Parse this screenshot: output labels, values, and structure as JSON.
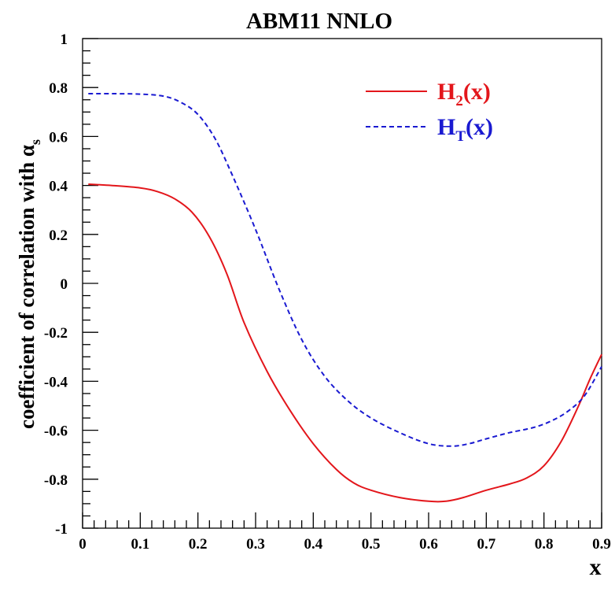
{
  "chart_data": {
    "type": "line",
    "title": "ABM11 NNLO",
    "xlabel": "x",
    "ylabel": {
      "main": "coefficient of correlation with α",
      "sub": "s"
    },
    "xlim": [
      0,
      0.9
    ],
    "ylim": [
      -1,
      1
    ],
    "x_ticks": [
      "0",
      "0.1",
      "0.2",
      "0.3",
      "0.4",
      "0.5",
      "0.6",
      "0.7",
      "0.8",
      "0.9"
    ],
    "y_ticks": [
      "1",
      "0.8",
      "0.6",
      "0.4",
      "0.2",
      "0",
      "-0.2",
      "-0.4",
      "-0.6",
      "-0.8",
      "-1"
    ],
    "legend_position": "top-right",
    "series": [
      {
        "name": "H2(x)",
        "label_main": "H",
        "label_sub": "2",
        "label_tail": "(x)",
        "color": "#e3161b",
        "style": "solid",
        "points": [
          [
            0.01,
            0.405
          ],
          [
            0.05,
            0.4
          ],
          [
            0.1,
            0.39
          ],
          [
            0.13,
            0.375
          ],
          [
            0.16,
            0.345
          ],
          [
            0.19,
            0.29
          ],
          [
            0.22,
            0.19
          ],
          [
            0.25,
            0.04
          ],
          [
            0.28,
            -0.16
          ],
          [
            0.32,
            -0.36
          ],
          [
            0.36,
            -0.52
          ],
          [
            0.4,
            -0.655
          ],
          [
            0.44,
            -0.76
          ],
          [
            0.47,
            -0.815
          ],
          [
            0.5,
            -0.845
          ],
          [
            0.55,
            -0.875
          ],
          [
            0.6,
            -0.89
          ],
          [
            0.63,
            -0.89
          ],
          [
            0.66,
            -0.875
          ],
          [
            0.7,
            -0.845
          ],
          [
            0.74,
            -0.82
          ],
          [
            0.77,
            -0.795
          ],
          [
            0.8,
            -0.745
          ],
          [
            0.83,
            -0.645
          ],
          [
            0.86,
            -0.5
          ],
          [
            0.88,
            -0.39
          ],
          [
            0.9,
            -0.29
          ]
        ]
      },
      {
        "name": "HT(x)",
        "label_main": "H",
        "label_sub": "T",
        "label_tail": "(x)",
        "color": "#1a1ad1",
        "style": "dashed",
        "points": [
          [
            0.01,
            0.775
          ],
          [
            0.05,
            0.775
          ],
          [
            0.1,
            0.773
          ],
          [
            0.14,
            0.765
          ],
          [
            0.17,
            0.74
          ],
          [
            0.2,
            0.69
          ],
          [
            0.23,
            0.59
          ],
          [
            0.26,
            0.44
          ],
          [
            0.3,
            0.22
          ],
          [
            0.34,
            -0.02
          ],
          [
            0.38,
            -0.23
          ],
          [
            0.42,
            -0.38
          ],
          [
            0.46,
            -0.48
          ],
          [
            0.5,
            -0.55
          ],
          [
            0.55,
            -0.61
          ],
          [
            0.6,
            -0.655
          ],
          [
            0.64,
            -0.665
          ],
          [
            0.67,
            -0.655
          ],
          [
            0.7,
            -0.635
          ],
          [
            0.74,
            -0.61
          ],
          [
            0.78,
            -0.59
          ],
          [
            0.81,
            -0.565
          ],
          [
            0.84,
            -0.525
          ],
          [
            0.87,
            -0.46
          ],
          [
            0.9,
            -0.34
          ]
        ]
      }
    ]
  }
}
